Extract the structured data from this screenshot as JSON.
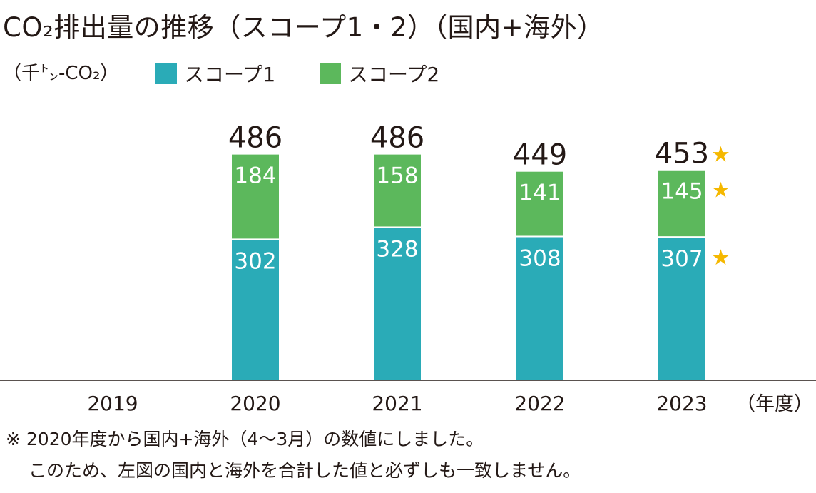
{
  "title": "CO₂排出量の推移（スコープ1・2）（国内+海外）",
  "unit_label": "（千㌧-CO₂）",
  "x_unit_label": "（年度）",
  "notes": [
    "※ 2020年度から国内+海外（4～3月）の数値にしました。",
    "このため、左図の国内と海外を合計した値と必ずしも一致しません。"
  ],
  "chart_data": {
    "type": "bar",
    "stacked": true,
    "categories": [
      "2019",
      "2020",
      "2021",
      "2022",
      "2023"
    ],
    "series": [
      {
        "name": "スコープ1",
        "color": "#2aabb7",
        "values": [
          null,
          302,
          328,
          308,
          307
        ]
      },
      {
        "name": "スコープ2",
        "color": "#5cb85c",
        "values": [
          null,
          184,
          158,
          141,
          145
        ]
      }
    ],
    "totals": [
      null,
      486,
      486,
      449,
      453
    ],
    "star_marker": "★",
    "star_color": "#f5b800",
    "star_markers": [
      {
        "category": "2023",
        "target": "total"
      },
      {
        "category": "2023",
        "target": "スコープ2"
      },
      {
        "category": "2023",
        "target": "スコープ1"
      }
    ],
    "ylim": [
      0,
      550
    ],
    "grid": false,
    "legend_position": "top-left"
  }
}
